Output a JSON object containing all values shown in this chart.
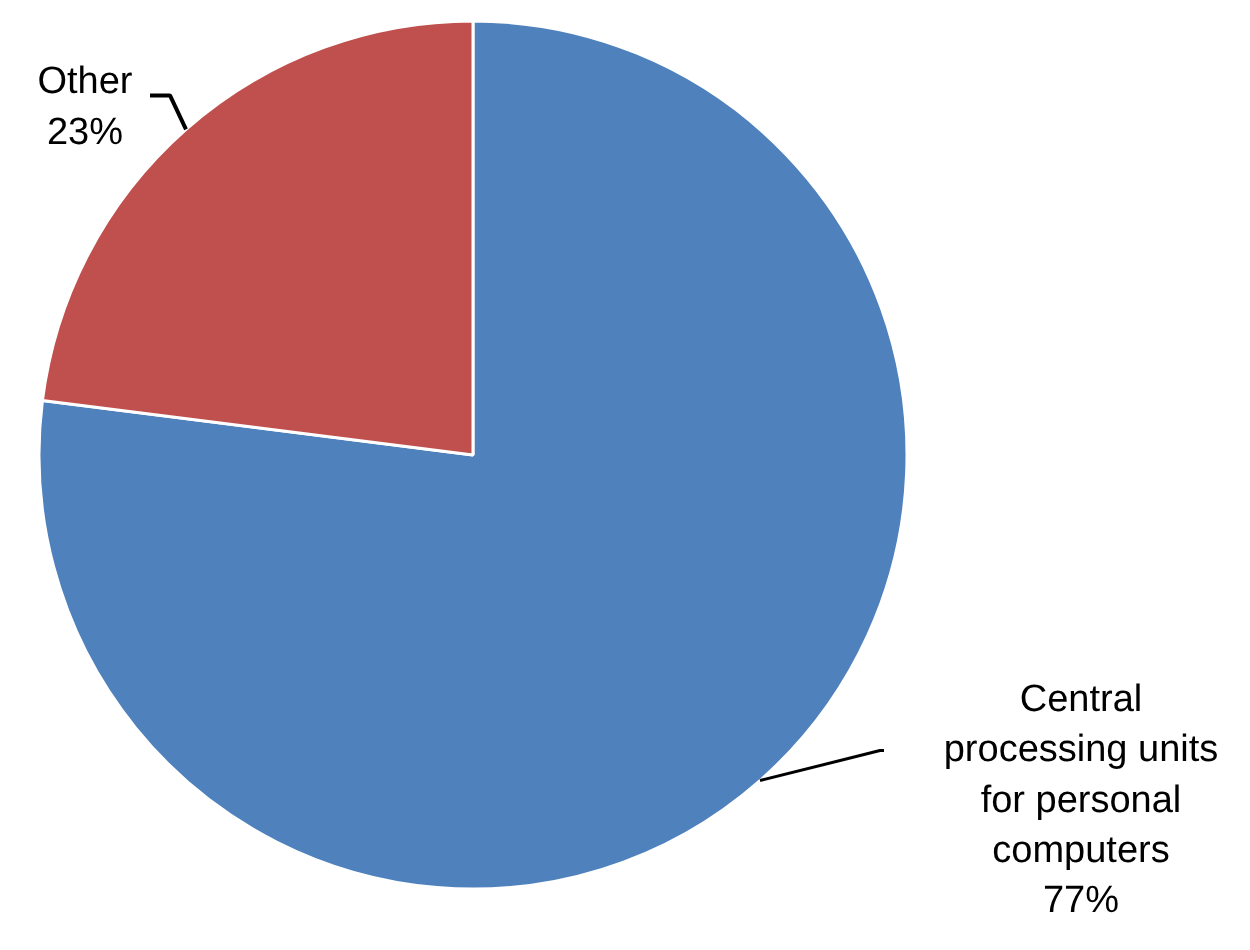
{
  "chart_data": {
    "type": "pie",
    "categories": [
      "Central processing units for personal computers",
      "Other"
    ],
    "values": [
      77,
      23
    ],
    "value_labels": [
      "77%",
      "23%"
    ],
    "colors": [
      "#4f81bd",
      "#c0504d"
    ]
  }
}
